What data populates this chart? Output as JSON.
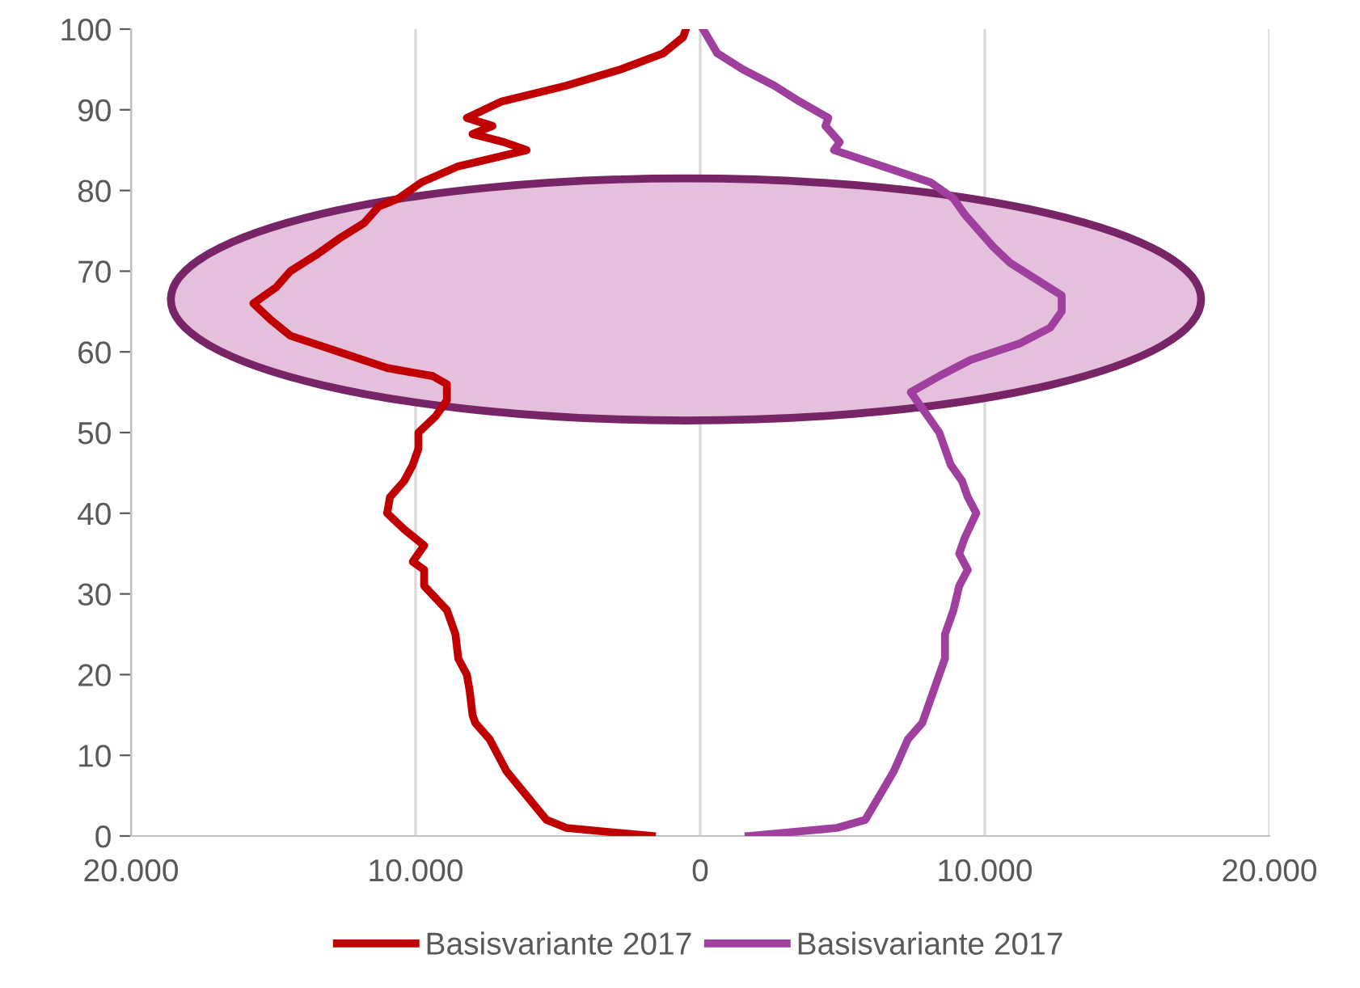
{
  "chart_data": {
    "type": "line",
    "series": [
      {
        "name": "Basisvariante 2017",
        "color": "#c00000",
        "x": [
          -1700,
          -4700,
          -5400,
          -6100,
          -6800,
          -7400,
          -7900,
          -8000,
          -8100,
          -8200,
          -8500,
          -8600,
          -8900,
          -9700,
          -9700,
          -10100,
          -9700,
          -10400,
          -11000,
          -10900,
          -10400,
          -10100,
          -9900,
          -9900,
          -9300,
          -8900,
          -8900,
          -9400,
          -11000,
          -12700,
          -14400,
          -15100,
          -15700,
          -14900,
          -14400,
          -13500,
          -12700,
          -11800,
          -11300,
          -10600,
          -9800,
          -8500,
          -6100,
          -6900,
          -8000,
          -7300,
          -8200,
          -7000,
          -4700,
          -2800,
          -1300,
          -600,
          -500
        ],
        "values": [
          0,
          1,
          2,
          5,
          8,
          12,
          14,
          15,
          18,
          20,
          22,
          25,
          28,
          31,
          33,
          34,
          36,
          38,
          40,
          42,
          44,
          46,
          48,
          50,
          52,
          54,
          56,
          57,
          58,
          60,
          62,
          64,
          66,
          68,
          70,
          72,
          74,
          76,
          78,
          79,
          81,
          83,
          85,
          86,
          87,
          88,
          89,
          91,
          93,
          95,
          97,
          99,
          100
        ]
      },
      {
        "name": "Basisvariante 2017",
        "color": "#a0409e",
        "x": [
          1700,
          4800,
          5800,
          6300,
          6800,
          7300,
          7800,
          8100,
          8300,
          8600,
          8600,
          8900,
          9100,
          9400,
          9100,
          9300,
          9700,
          9400,
          9200,
          8800,
          8600,
          8400,
          8000,
          7600,
          7400,
          8400,
          9500,
          11200,
          12300,
          12700,
          12700,
          11800,
          10900,
          10300,
          9800,
          9300,
          8900,
          8100,
          6400,
          4700,
          4900,
          4400,
          4500,
          3500,
          2600,
          1500,
          600,
          100
        ],
        "values": [
          0,
          1,
          2,
          5,
          8,
          12,
          14,
          17,
          19,
          22,
          25,
          28,
          31,
          33,
          35,
          37,
          40,
          42,
          44,
          46,
          48,
          50,
          52,
          54,
          55,
          57,
          59,
          61,
          63,
          65,
          67,
          69,
          71,
          73,
          75,
          77,
          79,
          81,
          83,
          85,
          86,
          88,
          89,
          91,
          93,
          95,
          97,
          100
        ]
      }
    ],
    "xlim": [
      -20000,
      20000
    ],
    "xticks": [
      {
        "value": -20000,
        "label": "20.000"
      },
      {
        "value": -10000,
        "label": "10.000"
      },
      0,
      {
        "value": 10000,
        "label": "10.000"
      },
      {
        "value": 20000,
        "label": "20.000"
      }
    ],
    "ylim": [
      0,
      100
    ],
    "yticks": [
      0,
      10,
      20,
      30,
      40,
      50,
      60,
      70,
      80,
      90,
      100
    ],
    "grid": "x",
    "legend": "bottom",
    "marker": "none",
    "line_style": "solid"
  }
}
